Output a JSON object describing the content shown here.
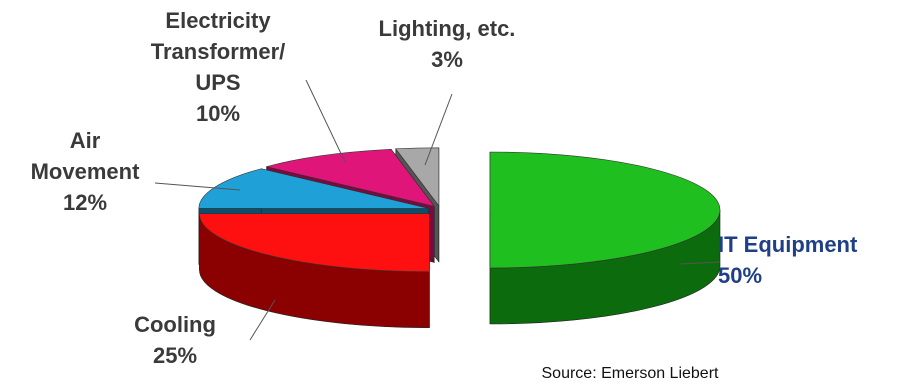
{
  "chart_data": {
    "type": "pie",
    "style": "3d-exploded",
    "slices": [
      {
        "label_lines": [
          "IT Equipment",
          "50%"
        ],
        "value": 50,
        "color_top": "#1fbf1f",
        "color_side": "#0c6b0c",
        "highlight": true
      },
      {
        "label_lines": [
          "Cooling",
          "25%"
        ],
        "value": 25,
        "color_top": "#ff1010",
        "color_side": "#8b0000",
        "highlight": false
      },
      {
        "label_lines": [
          "Air",
          "Movement",
          "12%"
        ],
        "value": 12,
        "color_top": "#1fa0d6",
        "color_side": "#0b4f6e",
        "highlight": false
      },
      {
        "label_lines": [
          "Electricity",
          "Transformer/",
          "UPS",
          "10%"
        ],
        "value": 10,
        "color_top": "#e0157a",
        "color_side": "#7a0a3f",
        "highlight": false
      },
      {
        "label_lines": [
          "Lighting, etc.",
          "3%"
        ],
        "value": 3,
        "color_top": "#a8a8a8",
        "color_side": "#555555",
        "highlight": false
      }
    ],
    "source": "Source: Emerson Liebert"
  }
}
